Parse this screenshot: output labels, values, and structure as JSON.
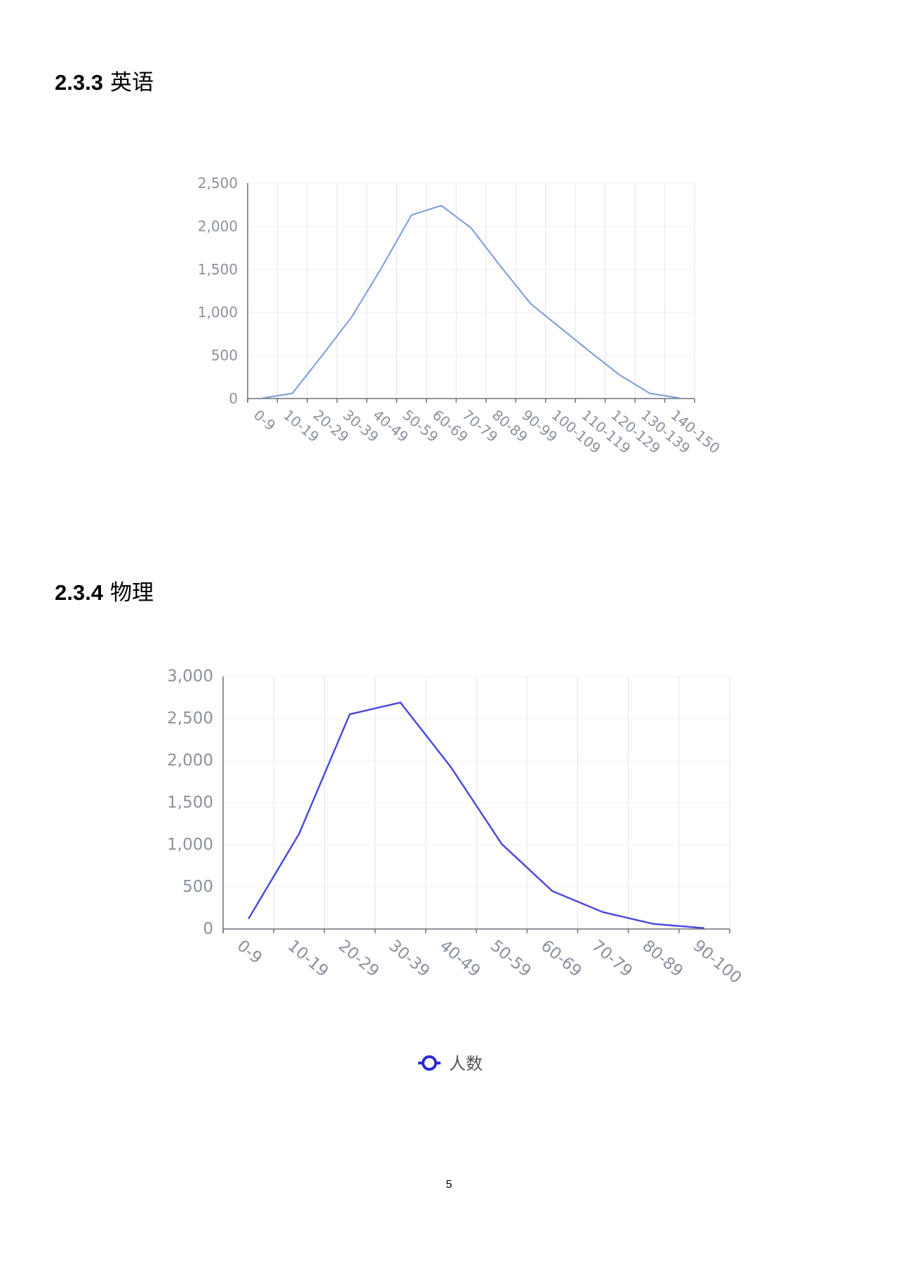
{
  "sections": [
    {
      "number": "2.3.3",
      "title": "英语"
    },
    {
      "number": "2.3.4",
      "title": "物理"
    }
  ],
  "page_number": "5",
  "chart_data": [
    {
      "type": "line",
      "categories": [
        "0-9",
        "10-19",
        "20-29",
        "30-39",
        "40-49",
        "50-59",
        "60-69",
        "70-79",
        "80-89",
        "90-99",
        "100-109",
        "110-119",
        "120-129",
        "130-139",
        "140-150"
      ],
      "series": [
        {
          "values": [
            5,
            60,
            500,
            950,
            1520,
            2130,
            2240,
            1980,
            1530,
            1100,
            820,
            540,
            270,
            60,
            5
          ],
          "color": "#7b9bdb"
        }
      ],
      "yticks": [
        "0",
        "500",
        "1,000",
        "1,500",
        "2,000",
        "2,500"
      ],
      "ylim": [
        0,
        2500
      ],
      "grid": {
        "vertical": true,
        "horizontal": true
      },
      "legend": null
    },
    {
      "type": "line",
      "categories": [
        "0-9",
        "10-19",
        "20-29",
        "30-39",
        "40-49",
        "50-59",
        "60-69",
        "70-79",
        "80-89",
        "90-100"
      ],
      "series": [
        {
          "name": "人数",
          "values": [
            120,
            1130,
            2550,
            2690,
            1920,
            1010,
            450,
            200,
            60,
            10
          ],
          "color": "#4b4bdb"
        }
      ],
      "yticks": [
        "0",
        "500",
        "1,000",
        "1,500",
        "2,000",
        "2,500",
        "3,000"
      ],
      "ylim": [
        0,
        3000
      ],
      "grid": {
        "vertical": true,
        "horizontal": true
      },
      "legend": {
        "position": "bottom-center",
        "marker": "circle-line",
        "color": "#2a2ad6"
      }
    }
  ]
}
